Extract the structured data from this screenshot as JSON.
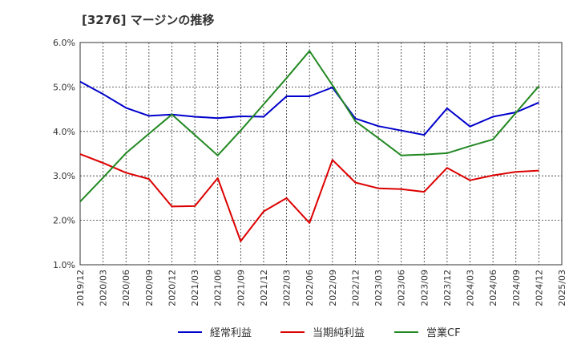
{
  "chart_data": {
    "type": "line",
    "title": "[3276]  マージンの推移",
    "x": [
      "2019/12",
      "2020/03",
      "2020/06",
      "2020/09",
      "2020/12",
      "2021/03",
      "2021/06",
      "2021/09",
      "2021/12",
      "2022/03",
      "2022/06",
      "2022/09",
      "2022/12",
      "2023/03",
      "2023/06",
      "2023/09",
      "2023/12",
      "2024/03",
      "2024/06",
      "2024/09",
      "2024/12",
      "2025/03"
    ],
    "ylim": [
      1.0,
      6.0
    ],
    "yticks": [
      "1.0%",
      "2.0%",
      "3.0%",
      "4.0%",
      "5.0%",
      "6.0%"
    ],
    "grid": true,
    "legend_position": "bottom",
    "series": [
      {
        "name": "経常利益",
        "color": "#0000cc",
        "values": [
          5.12,
          4.84,
          4.53,
          4.35,
          4.38,
          4.33,
          4.3,
          4.34,
          4.33,
          4.79,
          4.79,
          4.99,
          4.29,
          4.12,
          4.02,
          3.92,
          4.52,
          4.11,
          4.33,
          4.43,
          4.65,
          null
        ]
      },
      {
        "name": "当期純利益",
        "color": "#dd0000",
        "values": [
          3.49,
          3.29,
          3.07,
          2.93,
          2.31,
          2.32,
          2.95,
          1.53,
          2.2,
          2.5,
          1.94,
          3.36,
          2.85,
          2.72,
          2.7,
          2.64,
          3.18,
          2.9,
          3.01,
          3.09,
          3.12,
          null
        ]
      },
      {
        "name": "営業CF",
        "color": "#228822",
        "values": [
          2.42,
          2.96,
          3.51,
          3.95,
          4.38,
          3.92,
          3.46,
          4.02,
          4.61,
          5.2,
          5.81,
          5.04,
          4.23,
          3.85,
          3.46,
          3.48,
          3.51,
          3.67,
          3.82,
          4.42,
          5.02,
          null
        ]
      }
    ]
  }
}
